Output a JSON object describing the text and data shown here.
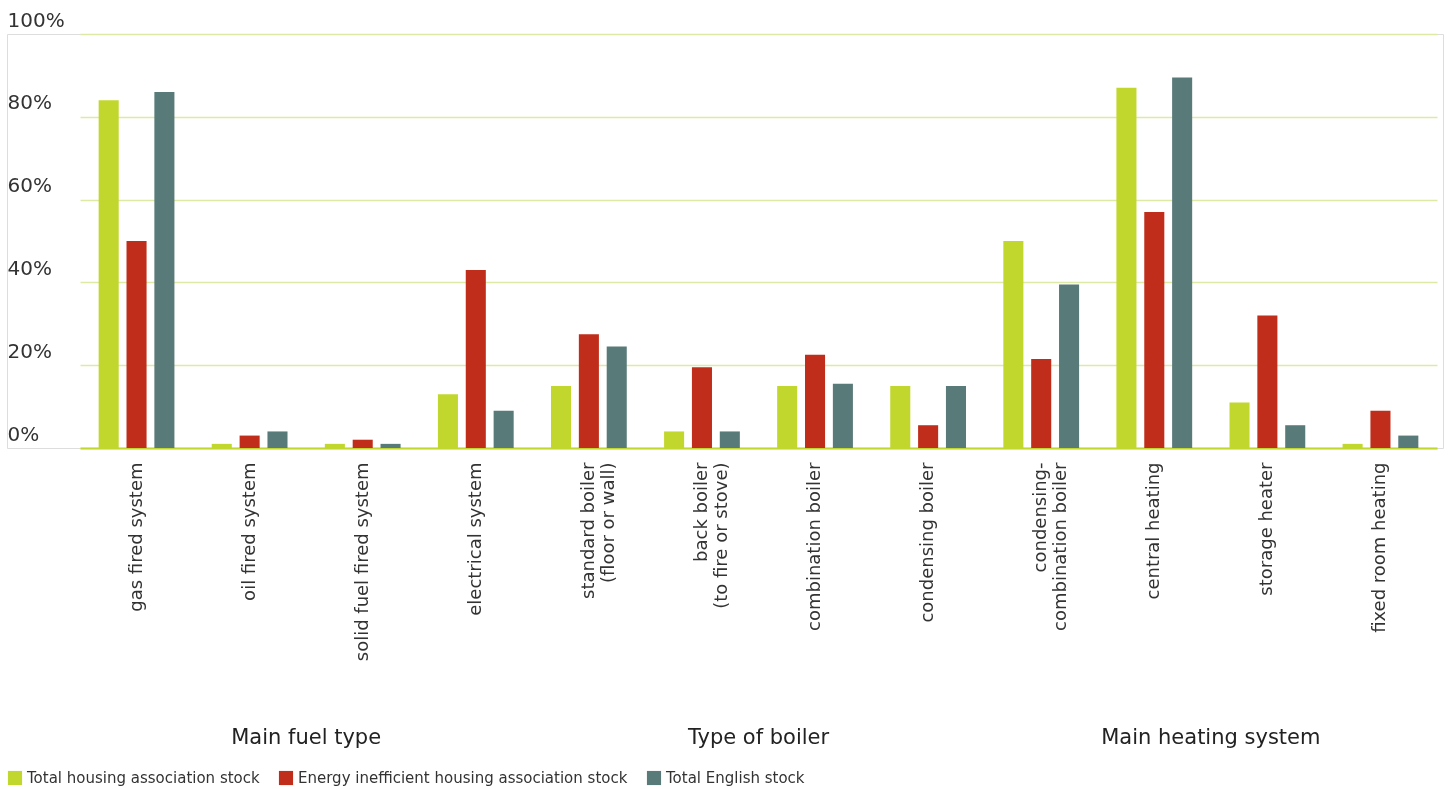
{
  "chart_data": {
    "type": "bar",
    "categories": [
      "gas fired system",
      "oil fired system",
      "solid fuel fired system",
      "electrical system",
      "standard boiler\n(floor or wall)",
      "back boiler\n(to fire or stove)",
      "combination boiler",
      "condensing boiler",
      "condensing-\ncombination boiler",
      "central heating",
      "storage heater",
      "fixed room heating"
    ],
    "series": [
      {
        "name": "Total housing association stock",
        "color": "#c2d72e",
        "values": [
          84,
          1,
          1,
          13,
          15,
          4,
          15,
          15,
          50,
          87,
          11,
          1
        ]
      },
      {
        "name": "Energy inefficient housing association stock",
        "color": "#c02d1a",
        "values": [
          50,
          3,
          2,
          43,
          27.5,
          19.5,
          22.5,
          5.5,
          21.5,
          57,
          32,
          9
        ]
      },
      {
        "name": "Total English stock",
        "color": "#587a79",
        "values": [
          86,
          4,
          1,
          9,
          24.5,
          4,
          15.5,
          15,
          39.5,
          89.5,
          5.5,
          3
        ]
      }
    ],
    "ylim": [
      0,
      100
    ],
    "yticks": [
      {
        "value": 0,
        "label": "0%"
      },
      {
        "value": 20,
        "label": "20%"
      },
      {
        "value": 40,
        "label": "40%"
      },
      {
        "value": 60,
        "label": "60%"
      },
      {
        "value": 80,
        "label": "80%"
      },
      {
        "value": 100,
        "label": "100%"
      }
    ],
    "annotations": [
      "Main fuel type",
      "Type of boiler",
      "Main heating system"
    ],
    "grid": "y",
    "legend": "bottom left"
  }
}
